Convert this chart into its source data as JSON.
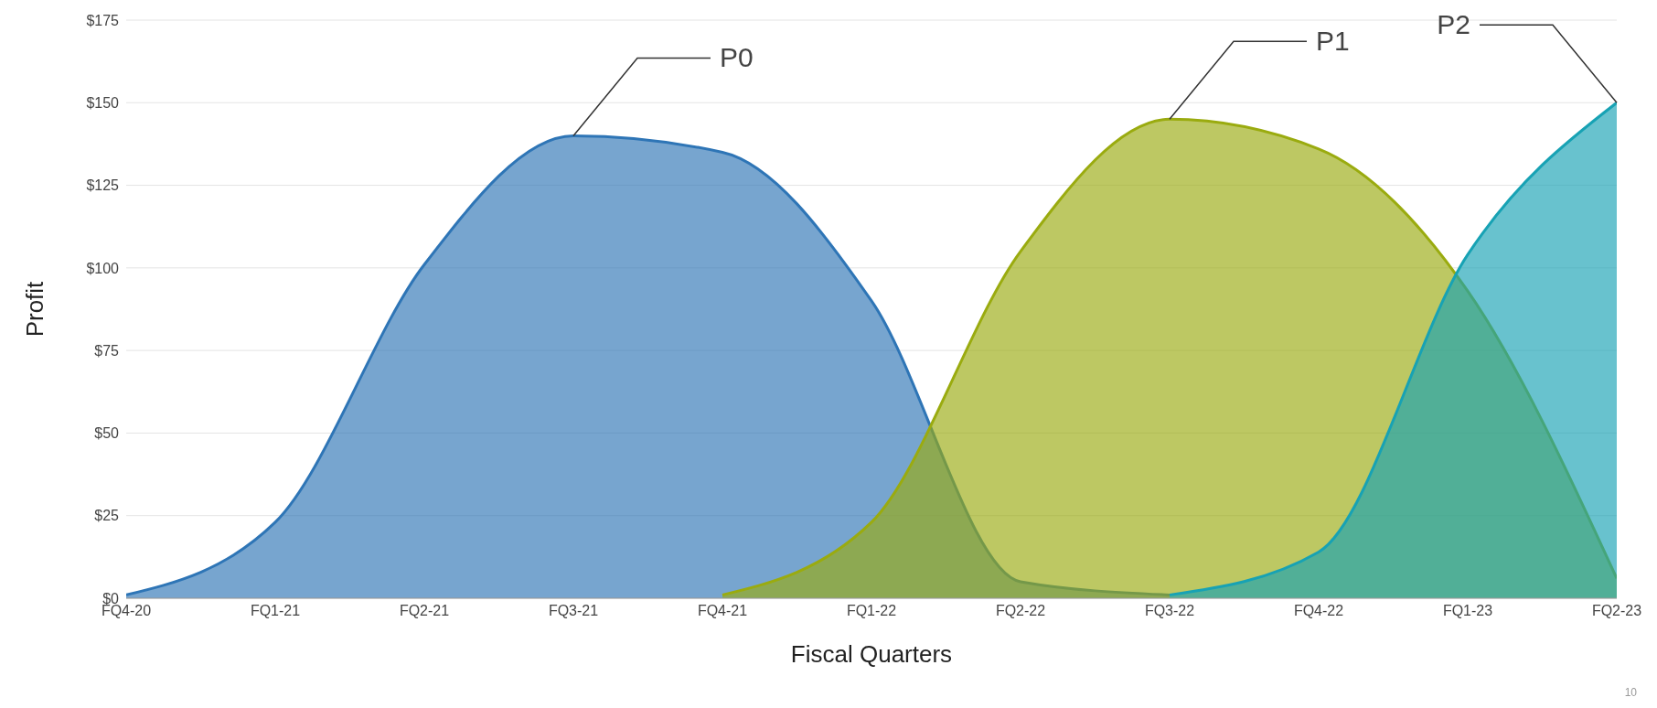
{
  "chart_data": {
    "type": "area",
    "xlabel": "Fiscal Quarters",
    "ylabel": "Profit",
    "categories": [
      "FQ4-20",
      "FQ1-21",
      "FQ2-21",
      "FQ3-21",
      "FQ4-21",
      "FQ1-22",
      "FQ2-22",
      "FQ3-22",
      "FQ4-22",
      "FQ1-23",
      "FQ2-23"
    ],
    "ylim": [
      0,
      175
    ],
    "yticks": [
      {
        "value": 0,
        "label": "$0"
      },
      {
        "value": 25,
        "label": "$25"
      },
      {
        "value": 50,
        "label": "$50"
      },
      {
        "value": 75,
        "label": "$75"
      },
      {
        "value": 100,
        "label": "$100"
      },
      {
        "value": 125,
        "label": "$125"
      },
      {
        "value": 150,
        "label": "$150"
      },
      {
        "value": 175,
        "label": "$175"
      }
    ],
    "grid": "y",
    "legend": false,
    "series": [
      {
        "color": "#2e75b6",
        "values": [
          1,
          23,
          101,
          140,
          135,
          90,
          5,
          1,
          null,
          null,
          null
        ]
      },
      {
        "color": "#9aab0f",
        "values": [
          null,
          null,
          null,
          null,
          1,
          23,
          105,
          145,
          136,
          93,
          6
        ]
      },
      {
        "color": "#17a2b4",
        "values": [
          null,
          null,
          null,
          null,
          null,
          null,
          null,
          1,
          14,
          104,
          150
        ]
      }
    ],
    "annotations": [
      {
        "text": "P0",
        "x": "FQ3-21",
        "y": 140
      },
      {
        "text": "P1",
        "x": "FQ3-22",
        "y": 145
      },
      {
        "text": "P2",
        "x": "FQ2-23",
        "y": 150
      },
      "10"
    ]
  }
}
